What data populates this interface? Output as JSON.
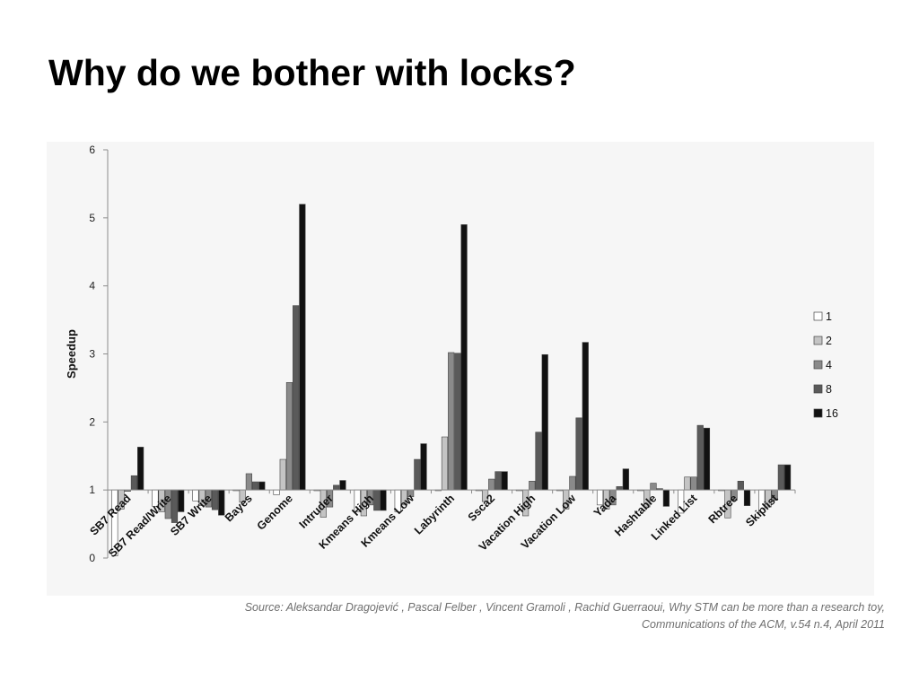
{
  "slide": {
    "title": "Why do we bother with locks?"
  },
  "source": {
    "line1": "Source: Aleksandar Dragojević , Pascal Felber , Vincent Gramoli , Rachid Guerraoui, Why STM can be more than a research toy,",
    "line2": "Communications of the ACM, v.54 n.4, April 2011"
  },
  "chart_data": {
    "type": "bar",
    "title": "",
    "xlabel": "",
    "ylabel": "Speedup",
    "ylim": [
      0,
      6
    ],
    "yticks": [
      0,
      1,
      2,
      3,
      4,
      5,
      6
    ],
    "baseline": 1,
    "grid": false,
    "legend_position": "right",
    "categories": [
      "SB7 Read",
      "SB7 Read/Write",
      "SB7 Write",
      "Bayes",
      "Genome",
      "Intruder",
      "Kmeans High",
      "Kmeans Low",
      "Labyrinth",
      "Ssca2",
      "Vacation High",
      "Vacation Low",
      "Yada",
      "Hashtable",
      "Linked List",
      "Rbtree",
      "Skiplist"
    ],
    "series": [
      {
        "name": "1",
        "color": "#ffffff",
        "values": [
          0.03,
          0.76,
          0.84,
          1,
          0.93,
          1,
          0.68,
          0.68,
          1,
          1,
          1,
          1,
          0.78,
          1,
          0.66,
          1,
          0.67
        ]
      },
      {
        "name": "2",
        "color": "#c4c4c4",
        "values": [
          0.72,
          0.68,
          0.77,
          0.82,
          1.45,
          0.6,
          0.62,
          0.78,
          1.78,
          0.83,
          0.62,
          0.72,
          0.72,
          0.75,
          1.19,
          0.59,
          0.75
        ]
      },
      {
        "name": "4",
        "color": "#8a8a8a",
        "values": [
          0.98,
          0.58,
          0.75,
          1.24,
          2.58,
          0.75,
          0.78,
          0.9,
          3.02,
          1.16,
          1.13,
          1.2,
          0.78,
          1.1,
          1.19,
          0.85,
          0.85
        ]
      },
      {
        "name": "8",
        "color": "#5a5a5a",
        "values": [
          1.21,
          0.52,
          0.71,
          1.12,
          3.71,
          1.07,
          0.7,
          1.45,
          3.01,
          1.27,
          1.85,
          2.06,
          1.05,
          1.02,
          1.95,
          1.13,
          1.37
        ]
      },
      {
        "name": "16",
        "color": "#111111",
        "values": [
          1.63,
          0.68,
          0.63,
          1.12,
          5.2,
          1.14,
          0.7,
          1.68,
          4.9,
          1.27,
          2.99,
          3.17,
          1.31,
          0.76,
          1.91,
          0.77,
          1.37
        ]
      }
    ]
  }
}
